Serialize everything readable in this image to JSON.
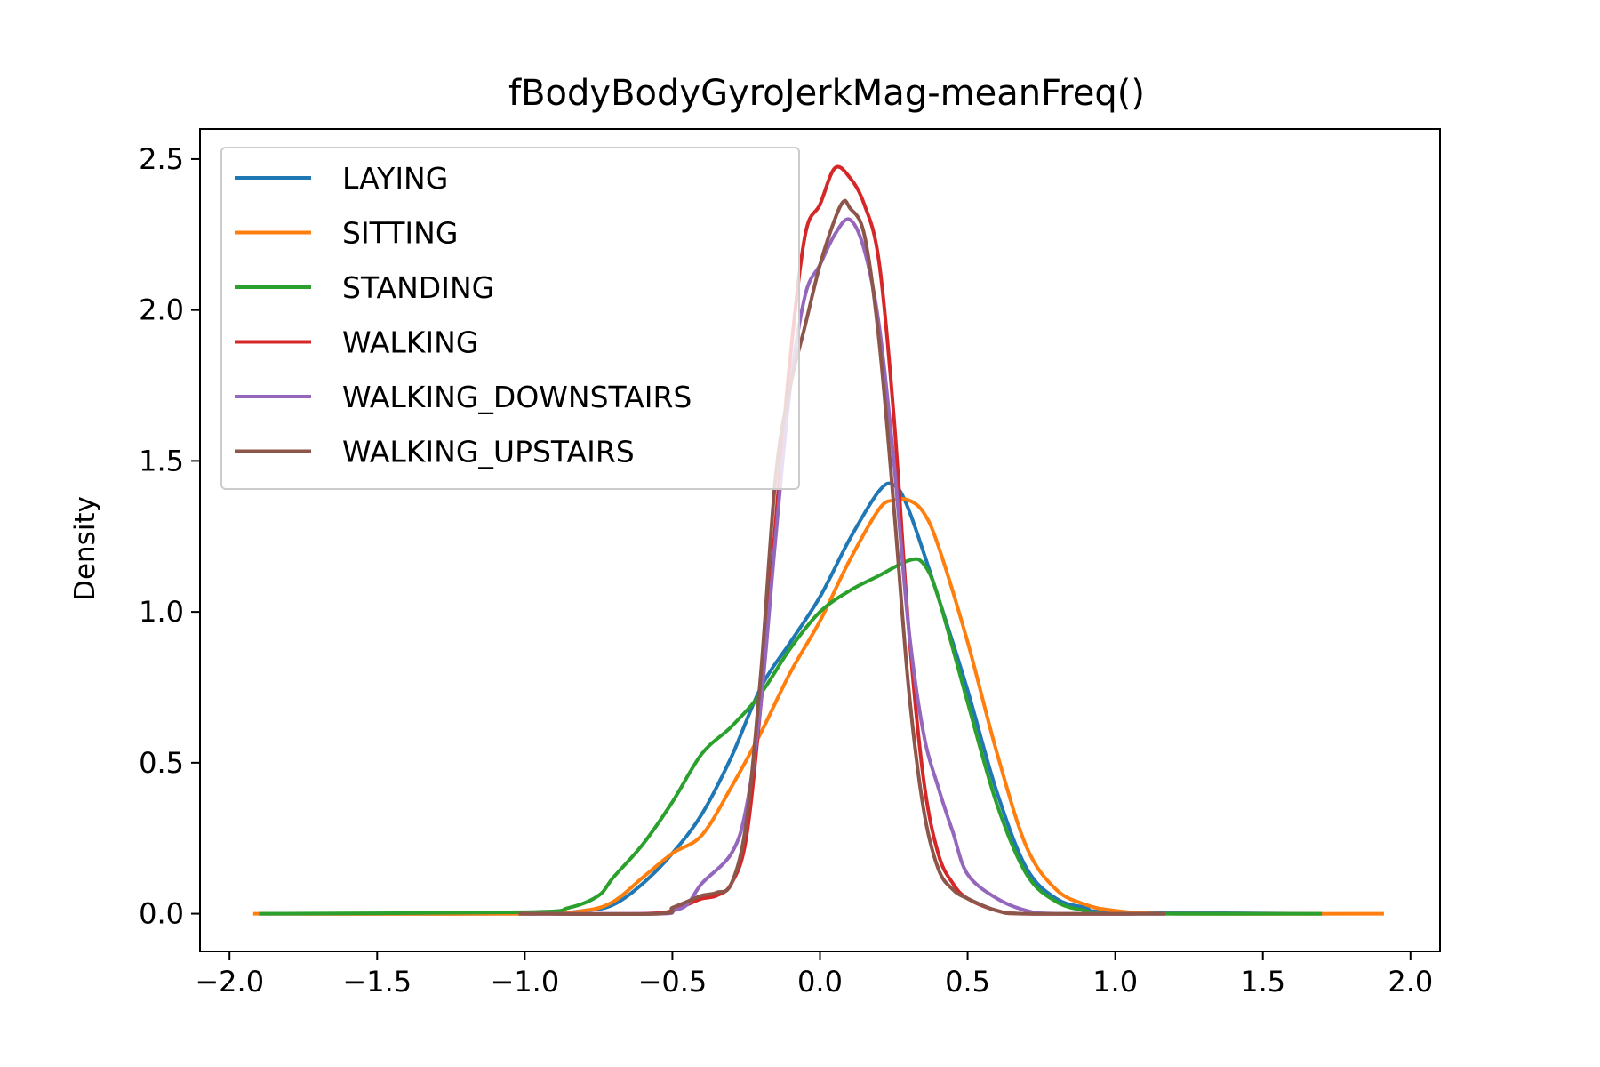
{
  "chart_data": {
    "type": "line",
    "title": "fBodyBodyGyroJerkMag-meanFreq()",
    "xlabel": "",
    "ylabel": "Density",
    "xlim": [
      -2.1,
      2.1
    ],
    "ylim": [
      -0.125,
      2.6
    ],
    "x_ticks": [
      -2.0,
      -1.5,
      -1.0,
      -0.5,
      0.0,
      0.5,
      1.0,
      1.5,
      2.0
    ],
    "x_tick_labels": [
      "−2.0",
      "−1.5",
      "−1.0",
      "−0.5",
      "0.0",
      "0.5",
      "1.0",
      "1.5",
      "2.0"
    ],
    "y_ticks": [
      0.0,
      0.5,
      1.0,
      1.5,
      2.0,
      2.5
    ],
    "y_tick_labels": [
      "0.0",
      "0.5",
      "1.0",
      "1.5",
      "2.0",
      "2.5"
    ],
    "grid": false,
    "legend_position": "top-left",
    "series": [
      {
        "name": "LAYING",
        "color": "#1f77b4",
        "points": [
          [
            -1.9,
            0
          ],
          [
            -1.0,
            0.0
          ],
          [
            -0.8,
            0.01
          ],
          [
            -0.7,
            0.03
          ],
          [
            -0.6,
            0.1
          ],
          [
            -0.5,
            0.2
          ],
          [
            -0.4,
            0.33
          ],
          [
            -0.3,
            0.52
          ],
          [
            -0.2,
            0.75
          ],
          [
            -0.1,
            0.9
          ],
          [
            0.0,
            1.05
          ],
          [
            0.1,
            1.24
          ],
          [
            0.2,
            1.4
          ],
          [
            0.25,
            1.42
          ],
          [
            0.3,
            1.34
          ],
          [
            0.4,
            1.05
          ],
          [
            0.5,
            0.74
          ],
          [
            0.6,
            0.4
          ],
          [
            0.7,
            0.15
          ],
          [
            0.8,
            0.05
          ],
          [
            0.9,
            0.02
          ],
          [
            1.0,
            0.005
          ],
          [
            1.7,
            0
          ]
        ]
      },
      {
        "name": "SITTING",
        "color": "#ff7f0e",
        "points": [
          [
            -1.92,
            0
          ],
          [
            -1.0,
            0.0
          ],
          [
            -0.8,
            0.01
          ],
          [
            -0.7,
            0.04
          ],
          [
            -0.6,
            0.12
          ],
          [
            -0.5,
            0.2
          ],
          [
            -0.4,
            0.26
          ],
          [
            -0.3,
            0.42
          ],
          [
            -0.2,
            0.6
          ],
          [
            -0.1,
            0.8
          ],
          [
            0.0,
            0.97
          ],
          [
            0.1,
            1.17
          ],
          [
            0.2,
            1.34
          ],
          [
            0.25,
            1.37
          ],
          [
            0.3,
            1.37
          ],
          [
            0.35,
            1.33
          ],
          [
            0.4,
            1.22
          ],
          [
            0.5,
            0.9
          ],
          [
            0.6,
            0.53
          ],
          [
            0.7,
            0.22
          ],
          [
            0.8,
            0.08
          ],
          [
            0.9,
            0.03
          ],
          [
            1.0,
            0.01
          ],
          [
            1.2,
            0
          ],
          [
            1.91,
            0
          ]
        ]
      },
      {
        "name": "STANDING",
        "color": "#2ca02c",
        "points": [
          [
            -1.9,
            0
          ],
          [
            -1.0,
            0.005
          ],
          [
            -0.85,
            0.02
          ],
          [
            -0.75,
            0.06
          ],
          [
            -0.7,
            0.12
          ],
          [
            -0.6,
            0.23
          ],
          [
            -0.5,
            0.37
          ],
          [
            -0.4,
            0.53
          ],
          [
            -0.3,
            0.62
          ],
          [
            -0.2,
            0.73
          ],
          [
            -0.1,
            0.88
          ],
          [
            0.0,
            1.0
          ],
          [
            0.1,
            1.07
          ],
          [
            0.2,
            1.12
          ],
          [
            0.3,
            1.17
          ],
          [
            0.35,
            1.16
          ],
          [
            0.4,
            1.05
          ],
          [
            0.5,
            0.7
          ],
          [
            0.6,
            0.36
          ],
          [
            0.7,
            0.13
          ],
          [
            0.8,
            0.04
          ],
          [
            0.9,
            0.01
          ],
          [
            1.0,
            0
          ],
          [
            1.7,
            0
          ]
        ]
      },
      {
        "name": "WALKING",
        "color": "#d62728",
        "points": [
          [
            -1.02,
            0
          ],
          [
            -0.6,
            0
          ],
          [
            -0.5,
            0.01
          ],
          [
            -0.45,
            0.03
          ],
          [
            -0.4,
            0.05
          ],
          [
            -0.35,
            0.06
          ],
          [
            -0.3,
            0.1
          ],
          [
            -0.25,
            0.25
          ],
          [
            -0.2,
            0.7
          ],
          [
            -0.15,
            1.3
          ],
          [
            -0.1,
            1.85
          ],
          [
            -0.05,
            2.25
          ],
          [
            0.0,
            2.35
          ],
          [
            0.05,
            2.47
          ],
          [
            0.1,
            2.44
          ],
          [
            0.15,
            2.35
          ],
          [
            0.2,
            2.16
          ],
          [
            0.25,
            1.65
          ],
          [
            0.3,
            0.95
          ],
          [
            0.35,
            0.45
          ],
          [
            0.4,
            0.2
          ],
          [
            0.45,
            0.1
          ],
          [
            0.5,
            0.05
          ],
          [
            0.6,
            0.01
          ],
          [
            0.7,
            0
          ],
          [
            1.17,
            0
          ]
        ]
      },
      {
        "name": "WALKING_DOWNSTAIRS",
        "color": "#9467bd",
        "points": [
          [
            -1.0,
            0
          ],
          [
            -0.55,
            0
          ],
          [
            -0.5,
            0.01
          ],
          [
            -0.45,
            0.03
          ],
          [
            -0.4,
            0.1
          ],
          [
            -0.3,
            0.2
          ],
          [
            -0.25,
            0.35
          ],
          [
            -0.2,
            0.7
          ],
          [
            -0.15,
            1.25
          ],
          [
            -0.1,
            1.75
          ],
          [
            -0.05,
            2.05
          ],
          [
            0.0,
            2.15
          ],
          [
            0.05,
            2.25
          ],
          [
            0.1,
            2.3
          ],
          [
            0.15,
            2.2
          ],
          [
            0.2,
            1.95
          ],
          [
            0.25,
            1.5
          ],
          [
            0.3,
            0.95
          ],
          [
            0.35,
            0.6
          ],
          [
            0.4,
            0.42
          ],
          [
            0.45,
            0.27
          ],
          [
            0.5,
            0.13
          ],
          [
            0.6,
            0.05
          ],
          [
            0.7,
            0.01
          ],
          [
            0.8,
            0
          ],
          [
            1.17,
            0
          ]
        ]
      },
      {
        "name": "WALKING_UPSTAIRS",
        "color": "#8c564b",
        "points": [
          [
            -1.02,
            0
          ],
          [
            -0.55,
            0
          ],
          [
            -0.5,
            0.02
          ],
          [
            -0.45,
            0.04
          ],
          [
            -0.4,
            0.06
          ],
          [
            -0.35,
            0.07
          ],
          [
            -0.3,
            0.1
          ],
          [
            -0.25,
            0.3
          ],
          [
            -0.2,
            0.8
          ],
          [
            -0.15,
            1.45
          ],
          [
            -0.1,
            1.75
          ],
          [
            -0.05,
            1.95
          ],
          [
            0.0,
            2.15
          ],
          [
            0.05,
            2.3
          ],
          [
            0.08,
            2.36
          ],
          [
            0.1,
            2.34
          ],
          [
            0.15,
            2.25
          ],
          [
            0.2,
            1.9
          ],
          [
            0.25,
            1.35
          ],
          [
            0.3,
            0.75
          ],
          [
            0.35,
            0.35
          ],
          [
            0.4,
            0.15
          ],
          [
            0.45,
            0.08
          ],
          [
            0.5,
            0.05
          ],
          [
            0.6,
            0.01
          ],
          [
            0.7,
            0
          ],
          [
            1.17,
            0
          ]
        ]
      }
    ]
  }
}
